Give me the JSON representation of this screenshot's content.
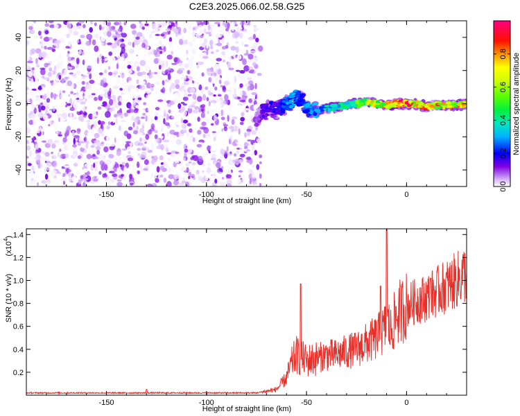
{
  "title": "C2E3.2025.066.02.58.G25",
  "chart_data": [
    {
      "type": "heatmap",
      "name": "spectrogram",
      "xlabel": "Height of straight line (km)",
      "ylabel": "Frequency (Hz)",
      "xlim": [
        -190,
        30
      ],
      "ylim": [
        -50,
        50
      ],
      "xticks": [
        -150,
        -100,
        -50,
        0
      ],
      "yticks": [
        -40,
        -20,
        0,
        20,
        40
      ],
      "noise_region_x": [
        -190,
        -75
      ],
      "signal_track": {
        "x": [
          -75,
          -72,
          -68,
          -65,
          -62,
          -60,
          -57,
          -55,
          -52,
          -50,
          -45,
          -40,
          -35,
          -30,
          -25,
          -20,
          -15,
          -10,
          -5,
          0,
          5,
          10,
          15,
          20,
          25,
          30
        ],
        "y": [
          -8,
          -5,
          -3,
          -4,
          -2,
          0,
          2,
          4,
          2,
          -3,
          -4,
          -3,
          -2,
          -1,
          0,
          1,
          0,
          -1,
          0,
          0,
          0,
          -2,
          -1,
          -1,
          -1,
          0
        ],
        "amplitude": [
          0.1,
          0.15,
          0.2,
          0.2,
          0.25,
          0.3,
          0.35,
          0.3,
          0.3,
          0.3,
          0.35,
          0.4,
          0.45,
          0.5,
          0.6,
          0.7,
          0.8,
          0.85,
          0.95,
          0.95,
          0.9,
          0.85,
          0.85,
          0.8,
          0.8,
          0.8
        ]
      },
      "colorbar": {
        "label": "Normalized spectral amplitude",
        "range": [
          0,
          1
        ],
        "ticks": [
          "0.0",
          "0.2",
          "0.4",
          "0.6",
          "0.8"
        ],
        "colors": [
          "#ffffff",
          "#c9a0ff",
          "#7a00e0",
          "#0000ff",
          "#00c8ff",
          "#00e080",
          "#40ff00",
          "#c0ff00",
          "#ffff00",
          "#ff8000",
          "#ff0000",
          "#ff0080"
        ]
      }
    },
    {
      "type": "line",
      "name": "snr",
      "xlabel": "Height of straight line (km)",
      "ylabel": "SNR (10 * v/v)",
      "scale_note": "(x10",
      "scale_exp": "4",
      "scale_close": ")",
      "xlim": [
        -190,
        30
      ],
      "ylim": [
        0,
        1.45
      ],
      "xticks": [
        -150,
        -100,
        -50,
        0
      ],
      "yticks": [
        0.2,
        0.4,
        0.6,
        0.8,
        1.0,
        1.2,
        1.4
      ],
      "color": "#e8302a",
      "envelope": {
        "x": [
          -190,
          -120,
          -75,
          -65,
          -60,
          -57,
          -55,
          -50,
          -45,
          -40,
          -35,
          -30,
          -25,
          -20,
          -15,
          -12,
          -10,
          -9,
          -8,
          -5,
          0,
          5,
          10,
          15,
          20,
          25,
          30
        ],
        "y": [
          0.02,
          0.02,
          0.02,
          0.05,
          0.15,
          0.3,
          0.35,
          0.3,
          0.32,
          0.35,
          0.35,
          0.38,
          0.4,
          0.45,
          0.5,
          0.55,
          0.6,
          0.62,
          0.55,
          0.7,
          0.78,
          0.82,
          0.85,
          0.9,
          0.95,
          1.0,
          1.07
        ]
      },
      "spikes": [
        {
          "x": -53,
          "y": 0.97
        },
        {
          "x": -10,
          "y": 1.45
        },
        {
          "x": -13,
          "y": 0.95
        },
        {
          "x": -3,
          "y": 0.95
        },
        {
          "x": 12,
          "y": 1.02
        },
        {
          "x": -130,
          "y": 0.05
        }
      ]
    }
  ]
}
